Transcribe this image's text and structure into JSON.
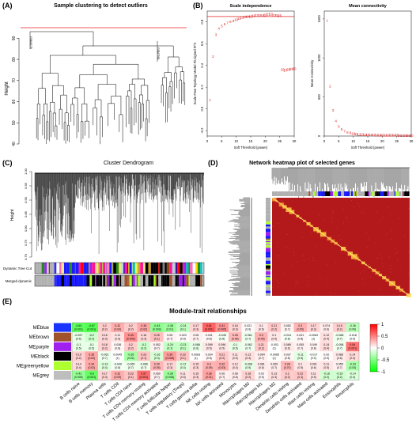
{
  "panels": {
    "A": {
      "label": "(A)",
      "title": "Sample clustering to detect outliers",
      "ylabel": "Height",
      "yticks": [
        "40",
        "50",
        "60",
        "70",
        "80",
        "90"
      ],
      "outlier_labels": [
        "GSM4178",
        "GSM7981"
      ]
    },
    "B": {
      "label": "(B)"
    },
    "C": {
      "label": "(C)",
      "title": "Cluster Dendrogram",
      "ylabel": "Height",
      "yticks": [
        "0.70",
        "0.75",
        "0.80",
        "0.85",
        "0.90",
        "0.95",
        "1.00"
      ],
      "row_labels": [
        "Dynamic Tree Cut",
        "Merged dynamic"
      ]
    },
    "D": {
      "label": "(D)",
      "title": "Network heatmap plot of selected genes"
    },
    "E": {
      "label": "(E)",
      "title": "Module-trait relationships",
      "legend_ticks": [
        "1",
        "0.5",
        "0",
        "-0.5",
        "-1"
      ]
    }
  },
  "chart_data": [
    {
      "type": "scatter",
      "title": "Scale independence",
      "xlabel": "Soft Threshold (power)",
      "ylabel": "Scale Free Topology Model Fit,signed R^2",
      "xlim": [
        0,
        30
      ],
      "ylim": [
        -0.25,
        0.9
      ],
      "xticks": [
        "0",
        "5",
        "10",
        "15",
        "20",
        "25",
        "30"
      ],
      "yticks": [
        "-0.2",
        "0.0",
        "0.2",
        "0.4",
        "0.6",
        "0.8"
      ],
      "threshold_line": 0.85,
      "points": [
        [
          1,
          0.08
        ],
        [
          2,
          0.48
        ],
        [
          3,
          0.68
        ],
        [
          4,
          0.74
        ],
        [
          5,
          0.76
        ],
        [
          6,
          0.78
        ],
        [
          7,
          0.79
        ],
        [
          8,
          0.8
        ],
        [
          9,
          0.81
        ],
        [
          10,
          0.82
        ],
        [
          11,
          0.83
        ],
        [
          12,
          0.84
        ],
        [
          13,
          0.845
        ],
        [
          14,
          0.85
        ],
        [
          15,
          0.85
        ],
        [
          16,
          0.855
        ],
        [
          17,
          0.86
        ],
        [
          18,
          0.86
        ],
        [
          19,
          0.86
        ],
        [
          20,
          0.865
        ],
        [
          21,
          0.87
        ],
        [
          22,
          0.87
        ],
        [
          23,
          0.86
        ],
        [
          24,
          0.86
        ],
        [
          25,
          0.855
        ],
        [
          26,
          0.36
        ],
        [
          27,
          0.355
        ],
        [
          28,
          0.36
        ],
        [
          29,
          0.365
        ],
        [
          30,
          0.37
        ]
      ]
    },
    {
      "type": "scatter",
      "title": "Mean connectivity",
      "xlabel": "Soft Threshold (power)",
      "ylabel": "Mean Connectivity",
      "xlim": [
        0,
        30
      ],
      "ylim": [
        0,
        1600
      ],
      "xticks": [
        "0",
        "5",
        "10",
        "15",
        "20",
        "25",
        "30"
      ],
      "yticks": [
        "0",
        "500",
        "1000",
        "1500"
      ],
      "points": [
        [
          1,
          1480
        ],
        [
          2,
          640
        ],
        [
          3,
          330
        ],
        [
          4,
          190
        ],
        [
          5,
          120
        ],
        [
          6,
          85
        ],
        [
          7,
          62
        ],
        [
          8,
          48
        ],
        [
          9,
          38
        ],
        [
          10,
          31
        ],
        [
          11,
          26
        ],
        [
          12,
          22
        ],
        [
          13,
          19
        ],
        [
          14,
          17
        ],
        [
          15,
          15
        ],
        [
          16,
          14
        ],
        [
          17,
          13
        ],
        [
          18,
          12
        ],
        [
          19,
          11
        ],
        [
          20,
          10.5
        ],
        [
          21,
          10
        ],
        [
          22,
          9.5
        ],
        [
          23,
          9
        ],
        [
          24,
          8.5
        ],
        [
          25,
          8
        ],
        [
          26,
          7.5
        ],
        [
          27,
          7
        ],
        [
          28,
          7
        ],
        [
          29,
          6.5
        ],
        [
          30,
          6
        ]
      ]
    },
    {
      "type": "heatmap",
      "title": "Module-trait relationships",
      "modules": [
        "MEblue",
        "MEbrown",
        "MEpurple",
        "MEblack",
        "MEgreenyellow",
        "MEgrey"
      ],
      "module_colors": [
        "#1a33ff",
        "#a0522d",
        "#a020f0",
        "#000000",
        "#adff2f",
        "#bebebe"
      ],
      "traits": [
        "B cells naive",
        "B cells memory",
        "Plasma cells",
        "T cells CD8",
        "T cells CD4 naive",
        "T cells CD4 memory resting",
        "T cells CD4 memory activated",
        "T cells follicular helper",
        "T cells regulatory (Tregs)",
        "T cells gamma delta",
        "NK cells resting",
        "NK cells activated",
        "Monocytes",
        "Macrophages M0",
        "Macrophages M1",
        "Macrophages M2",
        "Dendritic cells resting",
        "Dendritic cells activated",
        "Mast cells resting",
        "Mast cells activated",
        "Eosinophils",
        "Neutrophils"
      ],
      "correlations": [
        [
          -0.63,
          -0.67,
          0.2,
          0.32,
          0.2,
          0.35,
          -0.43,
          -0.38,
          -0.24,
          0.17,
          0.61,
          0.41,
          0.16,
          0.021,
          0.1,
          0.21,
          0.052,
          0.3,
          0.17,
          0.074,
          0.19,
          -0.26
        ],
        [
          -0.097,
          -0.2,
          0.16,
          0.11,
          0.43,
          0.16,
          0.25,
          0.05,
          0.023,
          0.06,
          0.031,
          -0.045,
          0.28,
          -0.061,
          0.3,
          0.1,
          -0.041,
          0.031,
          -0.0062,
          0.12,
          -0.068,
          -0.018
        ],
        [
          -0.1,
          -0.1,
          0.18,
          0.036,
          0.2,
          -0.2,
          0.052,
          -0.24,
          -0.23,
          -0.088,
          0.099,
          0.096,
          -0.1,
          -0.062,
          0.21,
          -0.003,
          0.089,
          0.055,
          0.049,
          0.14,
          -0.058,
          0.54
        ],
        [
          0.19,
          0.35,
          -0.062,
          0.0045,
          -0.35,
          0.23,
          -0.16,
          0.39,
          0.23,
          0.0083,
          0.034,
          0.21,
          0.11,
          0.13,
          0.064,
          -0.0085,
          0.037,
          -0.11,
          -0.017,
          0.02,
          0.088,
          0.14
        ],
        [
          0.14,
          0.34,
          -0.13,
          -0.049,
          -0.065,
          -0.066,
          0.29,
          0.17,
          -0.12,
          0.15,
          0.3,
          0.32,
          0.12,
          -0.098,
          0.081,
          0.069,
          0.28,
          0.1,
          0.091,
          0.11,
          0.055,
          -0.33
        ],
        [
          -0.41,
          -0.6,
          0.17,
          0.32,
          0.23,
          0.57,
          0.059,
          -0.39,
          0.11,
          0.15,
          0.36,
          0.06,
          0.08,
          0.18,
          0.03,
          0.13,
          0.2,
          0.22,
          0.11,
          -0.18,
          -0.19,
          -0.14
        ]
      ],
      "pvalues": [
        [
          0.001,
          0.001,
          0.2,
          0.03,
          0.2,
          0.02,
          0.003,
          0.01,
          0.1,
          0.3,
          0.001,
          0.005,
          0.3,
          0.9,
          0.5,
          0.2,
          0.7,
          0.05,
          0.3,
          0.6,
          0.2,
          0.09
        ],
        [
          0.5,
          0.2,
          0.3,
          0.5,
          0.003,
          0.3,
          0.1,
          0.7,
          0.9,
          0.7,
          0.8,
          0.8,
          0.06,
          0.7,
          0.05,
          0.5,
          0.8,
          0.8,
          1,
          0.4,
          0.7,
          0.9
        ],
        [
          0.5,
          0.5,
          0.2,
          0.8,
          0.2,
          0.2,
          0.7,
          0.1,
          0.1,
          0.6,
          0.5,
          0.5,
          0.5,
          0.7,
          0.2,
          1,
          0.6,
          0.7,
          0.8,
          0.4,
          0.7,
          0.001
        ],
        [
          0.2,
          0.02,
          0.7,
          1,
          0.02,
          0.1,
          0.3,
          0.008,
          0.1,
          1,
          0.8,
          0.2,
          0.5,
          0.4,
          0.7,
          1,
          0.8,
          0.5,
          0.9,
          0.9,
          0.6,
          0.4
        ],
        [
          0.4,
          0.02,
          0.4,
          0.8,
          0.7,
          0.7,
          0.05,
          0.3,
          0.4,
          0.3,
          0.05,
          0.03,
          0.4,
          0.5,
          0.6,
          0.7,
          0.07,
          0.5,
          0.6,
          0.5,
          0.7,
          0.03
        ],
        [
          0.005,
          0.001,
          0.3,
          0.03,
          0.1,
          0.001,
          0.7,
          0.008,
          0.5,
          0.3,
          0.01,
          0.7,
          0.6,
          0.2,
          0.9,
          0.4,
          0.2,
          0.1,
          0.5,
          0.2,
          0.2,
          0.4
        ]
      ]
    }
  ]
}
